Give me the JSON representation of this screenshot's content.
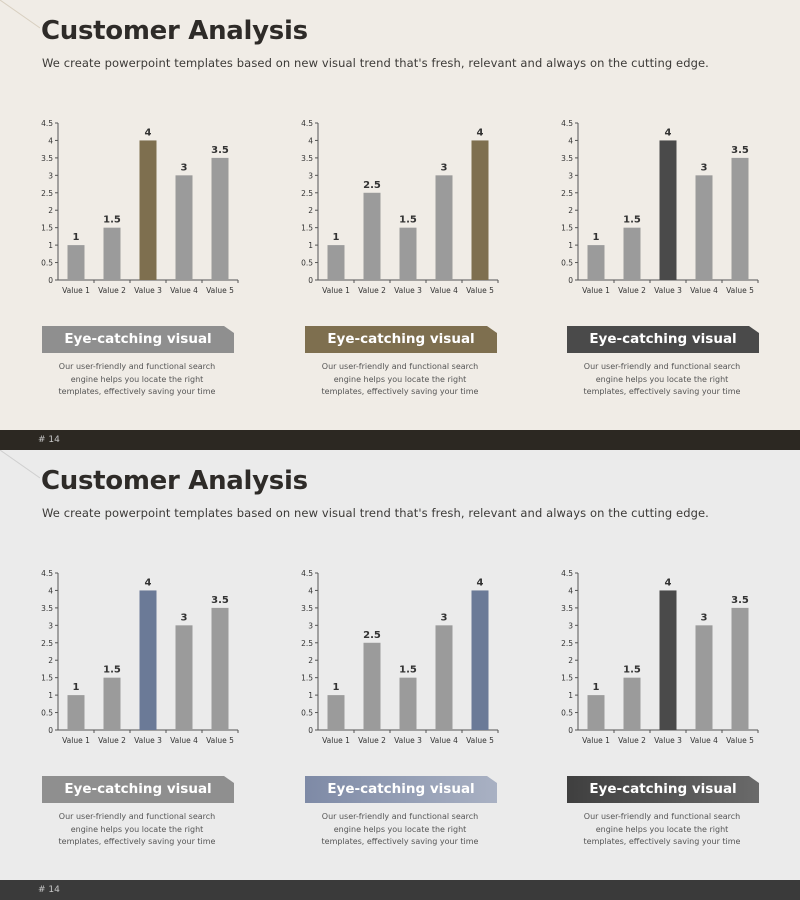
{
  "colors": {
    "gray_bar": "#9b9b9b",
    "brown": "#7e6f4f",
    "dark": "#4a4a4a",
    "blue": "#6b7a97",
    "banner_gray": "#8f8f8f",
    "banner_dark": "#4a4a4a"
  },
  "slides": [
    {
      "title": "Customer Analysis",
      "subtitle": "We create powerpoint templates based on new visual trend that's fresh, relevant and always on the cutting edge.",
      "page_label": "# 14",
      "banners": [
        {
          "label": "Eye-catching visual",
          "desc": [
            "Our user-friendly and functional search",
            "engine helps you locate the right",
            "templates, effectively saving your time"
          ]
        },
        {
          "label": "Eye-catching visual",
          "desc": [
            "Our user-friendly and functional search",
            "engine helps you locate the right",
            "templates, effectively saving your time"
          ]
        },
        {
          "label": "Eye-catching visual",
          "desc": [
            "Our user-friendly and functional search",
            "engine helps you locate the right",
            "templates, effectively saving your time"
          ]
        }
      ]
    },
    {
      "title": "Customer Analysis",
      "subtitle": "We create powerpoint templates based on new visual trend that's fresh, relevant and always on the cutting edge.",
      "page_label": "# 14",
      "banners": [
        {
          "label": "Eye-catching visual",
          "desc": [
            "Our user-friendly and functional search",
            "engine helps you locate the right",
            "templates, effectively saving your time"
          ]
        },
        {
          "label": "Eye-catching visual",
          "desc": [
            "Our user-friendly and functional search",
            "engine helps you locate the right",
            "templates, effectively saving your time"
          ]
        },
        {
          "label": "Eye-catching visual",
          "desc": [
            "Our user-friendly and functional search",
            "engine helps you locate the right",
            "templates, effectively saving your time"
          ]
        }
      ]
    }
  ],
  "chart_data": [
    {
      "type": "bar",
      "slide": 1,
      "categories": [
        "Value 1",
        "Value 2",
        "Value 3",
        "Value 4",
        "Value 5"
      ],
      "values": [
        1,
        1.5,
        4,
        3,
        3.5
      ],
      "highlight_index": 2,
      "highlight_color": "#7e6f4f",
      "ylim": [
        0,
        4.5
      ],
      "yticks": [
        0,
        0.5,
        1,
        1.5,
        2,
        2.5,
        3,
        3.5,
        4,
        4.5
      ]
    },
    {
      "type": "bar",
      "slide": 1,
      "categories": [
        "Value 1",
        "Value 2",
        "Value 3",
        "Value 4",
        "Value 5"
      ],
      "values": [
        1,
        2.5,
        1.5,
        3,
        4
      ],
      "highlight_index": 4,
      "highlight_color": "#7e6f4f",
      "ylim": [
        0,
        4.5
      ],
      "yticks": [
        0,
        0.5,
        1,
        1.5,
        2,
        2.5,
        3,
        3.5,
        4,
        4.5
      ]
    },
    {
      "type": "bar",
      "slide": 1,
      "categories": [
        "Value 1",
        "Value 2",
        "Value 3",
        "Value 4",
        "Value 5"
      ],
      "values": [
        1,
        1.5,
        4,
        3,
        3.5
      ],
      "highlight_index": 2,
      "highlight_color": "#4a4a4a",
      "ylim": [
        0,
        4.5
      ],
      "yticks": [
        0,
        0.5,
        1,
        1.5,
        2,
        2.5,
        3,
        3.5,
        4,
        4.5
      ]
    },
    {
      "type": "bar",
      "slide": 2,
      "categories": [
        "Value 1",
        "Value 2",
        "Value 3",
        "Value 4",
        "Value 5"
      ],
      "values": [
        1,
        1.5,
        4,
        3,
        3.5
      ],
      "highlight_index": 2,
      "highlight_color": "#6b7a97",
      "ylim": [
        0,
        4.5
      ],
      "yticks": [
        0,
        0.5,
        1,
        1.5,
        2,
        2.5,
        3,
        3.5,
        4,
        4.5
      ]
    },
    {
      "type": "bar",
      "slide": 2,
      "categories": [
        "Value 1",
        "Value 2",
        "Value 3",
        "Value 4",
        "Value 5"
      ],
      "values": [
        1,
        2.5,
        1.5,
        3,
        4
      ],
      "highlight_index": 4,
      "highlight_color": "#6b7a97",
      "ylim": [
        0,
        4.5
      ],
      "yticks": [
        0,
        0.5,
        1,
        1.5,
        2,
        2.5,
        3,
        3.5,
        4,
        4.5
      ]
    },
    {
      "type": "bar",
      "slide": 2,
      "categories": [
        "Value 1",
        "Value 2",
        "Value 3",
        "Value 4",
        "Value 5"
      ],
      "values": [
        1,
        1.5,
        4,
        3,
        3.5
      ],
      "highlight_index": 2,
      "highlight_color": "#4a4a4a",
      "ylim": [
        0,
        4.5
      ],
      "yticks": [
        0,
        0.5,
        1,
        1.5,
        2,
        2.5,
        3,
        3.5,
        4,
        4.5
      ]
    }
  ]
}
